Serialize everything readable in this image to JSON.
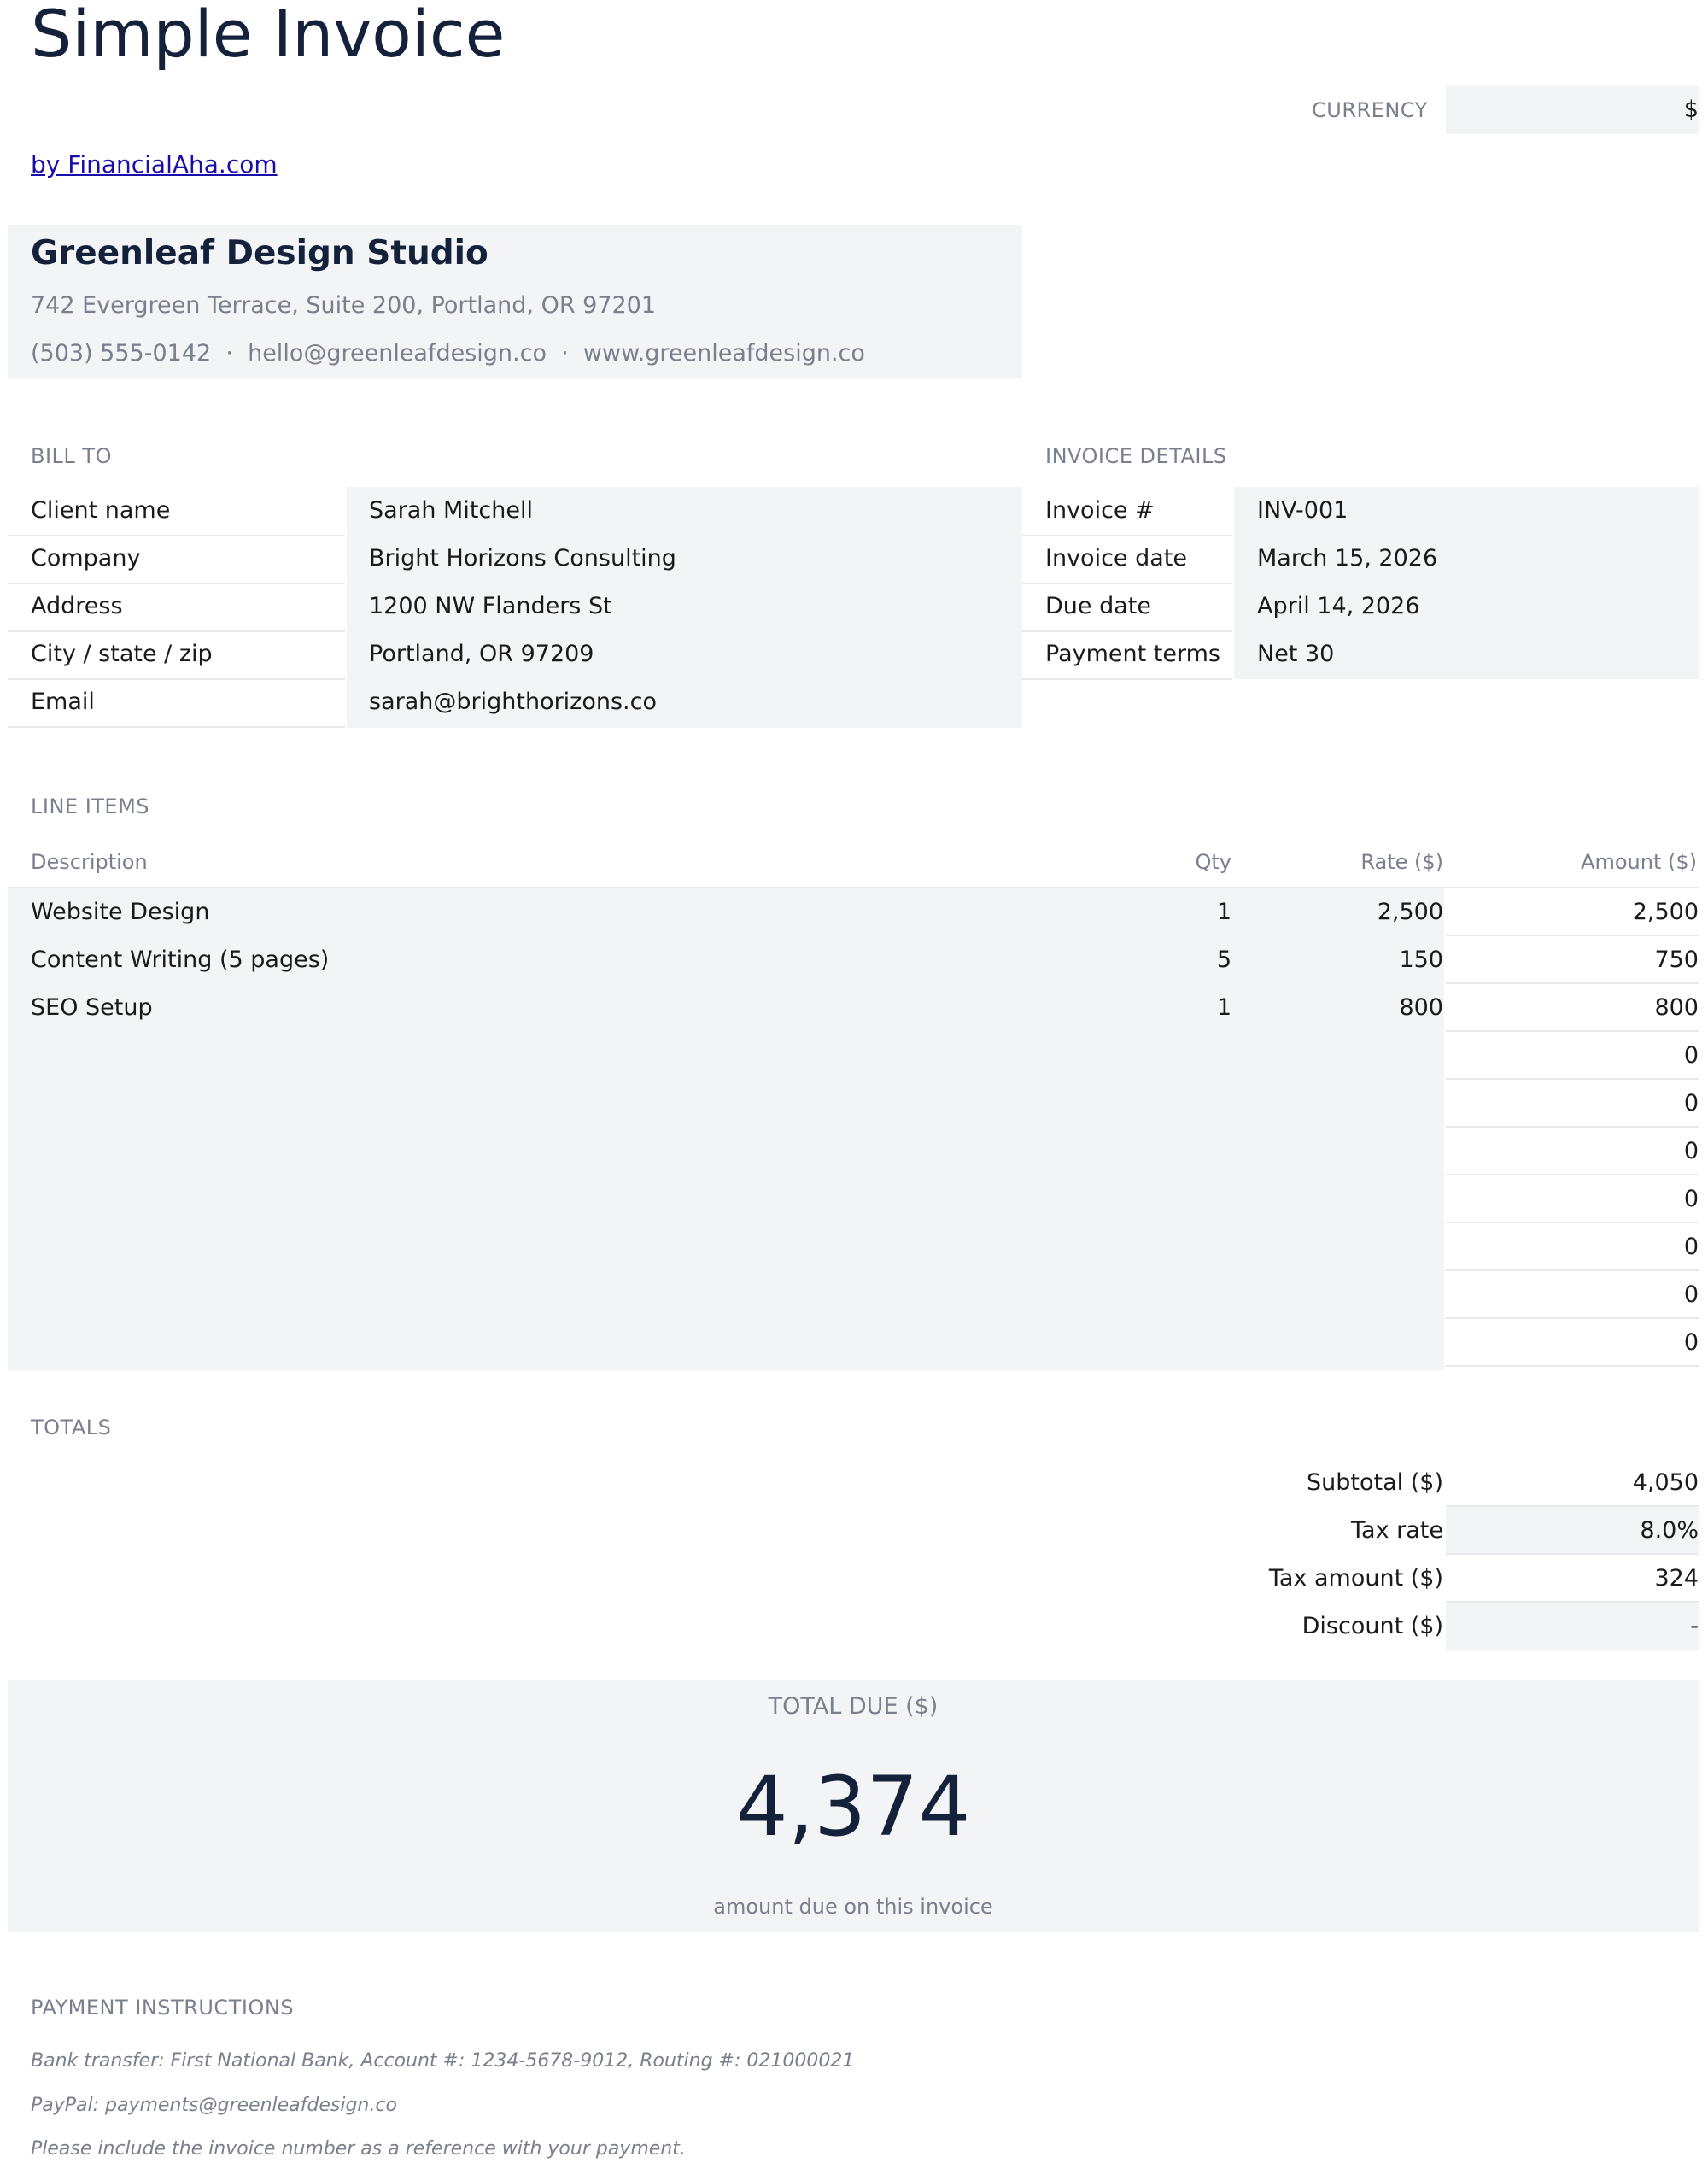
{
  "header": {
    "title": "Simple Invoice",
    "byline": "by FinancialAha.com",
    "currency_label": "CURRENCY",
    "currency_value": "$"
  },
  "company": {
    "name": "Greenleaf Design Studio",
    "address": "742 Evergreen Terrace, Suite 200, Portland, OR 97201",
    "contact": "(503) 555-0142  ·  hello@greenleafdesign.co  ·  www.greenleafdesign.co"
  },
  "bill_to": {
    "heading": "BILL TO",
    "rows": [
      {
        "label": "Client name",
        "value": "Sarah Mitchell"
      },
      {
        "label": "Company",
        "value": "Bright Horizons Consulting"
      },
      {
        "label": "Address",
        "value": "1200 NW Flanders St"
      },
      {
        "label": "City / state / zip",
        "value": "Portland, OR 97209"
      },
      {
        "label": "Email",
        "value": "sarah@brighthorizons.co"
      }
    ]
  },
  "invoice_details": {
    "heading": "INVOICE DETAILS",
    "rows": [
      {
        "label": "Invoice #",
        "value": "INV-001"
      },
      {
        "label": "Invoice date",
        "value": "March 15, 2026"
      },
      {
        "label": "Due date",
        "value": "April 14, 2026"
      },
      {
        "label": "Payment terms",
        "value": "Net 30"
      }
    ]
  },
  "line_items": {
    "heading": "LINE ITEMS",
    "columns": [
      "Description",
      "Qty",
      "Rate ($)",
      "Amount ($)"
    ],
    "rows": [
      {
        "description": "Website Design",
        "qty": "1",
        "rate": "2,500",
        "amount": "2,500"
      },
      {
        "description": "Content Writing (5 pages)",
        "qty": "5",
        "rate": "150",
        "amount": "750"
      },
      {
        "description": "SEO Setup",
        "qty": "1",
        "rate": "800",
        "amount": "800"
      },
      {
        "description": "",
        "qty": "",
        "rate": "",
        "amount": "0"
      },
      {
        "description": "",
        "qty": "",
        "rate": "",
        "amount": "0"
      },
      {
        "description": "",
        "qty": "",
        "rate": "",
        "amount": "0"
      },
      {
        "description": "",
        "qty": "",
        "rate": "",
        "amount": "0"
      },
      {
        "description": "",
        "qty": "",
        "rate": "",
        "amount": "0"
      },
      {
        "description": "",
        "qty": "",
        "rate": "",
        "amount": "0"
      },
      {
        "description": "",
        "qty": "",
        "rate": "",
        "amount": "0"
      }
    ]
  },
  "totals": {
    "heading": "TOTALS",
    "rows": [
      {
        "label": "Subtotal ($)",
        "value": "4,050"
      },
      {
        "label": "Tax rate",
        "value": "8.0%"
      },
      {
        "label": "Tax amount ($)",
        "value": "324"
      },
      {
        "label": "Discount ($)",
        "value": "-"
      }
    ],
    "total_due_label": "TOTAL DUE ($)",
    "total_due_value": "4,374",
    "total_due_caption": "amount due on this invoice"
  },
  "payment": {
    "heading": "PAYMENT INSTRUCTIONS",
    "lines": [
      "Bank transfer: First National Bank, Account #: 1234-5678-9012, Routing #: 021000021",
      "PayPal: payments@greenleafdesign.co",
      "Please include the invoice number as a reference with your payment."
    ]
  }
}
